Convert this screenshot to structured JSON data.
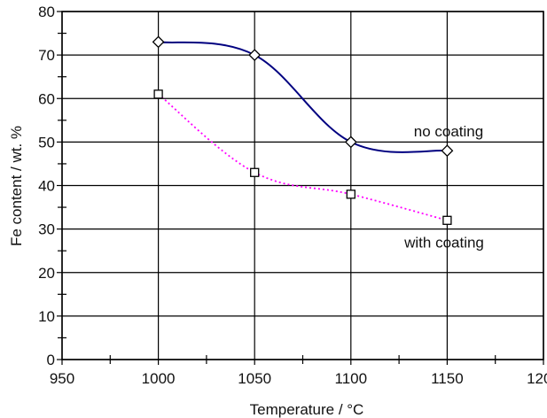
{
  "chart_data": {
    "type": "line",
    "title": "",
    "xlabel": "Temperature / °C",
    "ylabel": "Fe content / wt. %",
    "xlim": [
      950,
      1200
    ],
    "ylim": [
      0,
      80
    ],
    "x_ticks": [
      950,
      1000,
      1050,
      1100,
      1150,
      1200
    ],
    "y_ticks": [
      0,
      10,
      20,
      30,
      40,
      50,
      60,
      70,
      80
    ],
    "x_tick_labels": [
      "950",
      "1000",
      "1050",
      "1100",
      "1150",
      "1200"
    ],
    "y_tick_labels": [
      "0",
      "10",
      "20",
      "30",
      "40",
      "50",
      "60",
      "70",
      "80"
    ],
    "grid": true,
    "series": [
      {
        "label": "no coating",
        "marker": "diamond",
        "line_style": "solid",
        "color": "#000080",
        "x": [
          1000,
          1050,
          1100,
          1150
        ],
        "values": [
          73,
          70,
          50,
          48
        ]
      },
      {
        "label": "with coating",
        "marker": "square",
        "line_style": "dotted",
        "color": "#ff00ff",
        "x": [
          1000,
          1050,
          1100,
          1150
        ],
        "values": [
          61,
          43,
          38,
          32
        ]
      }
    ]
  }
}
